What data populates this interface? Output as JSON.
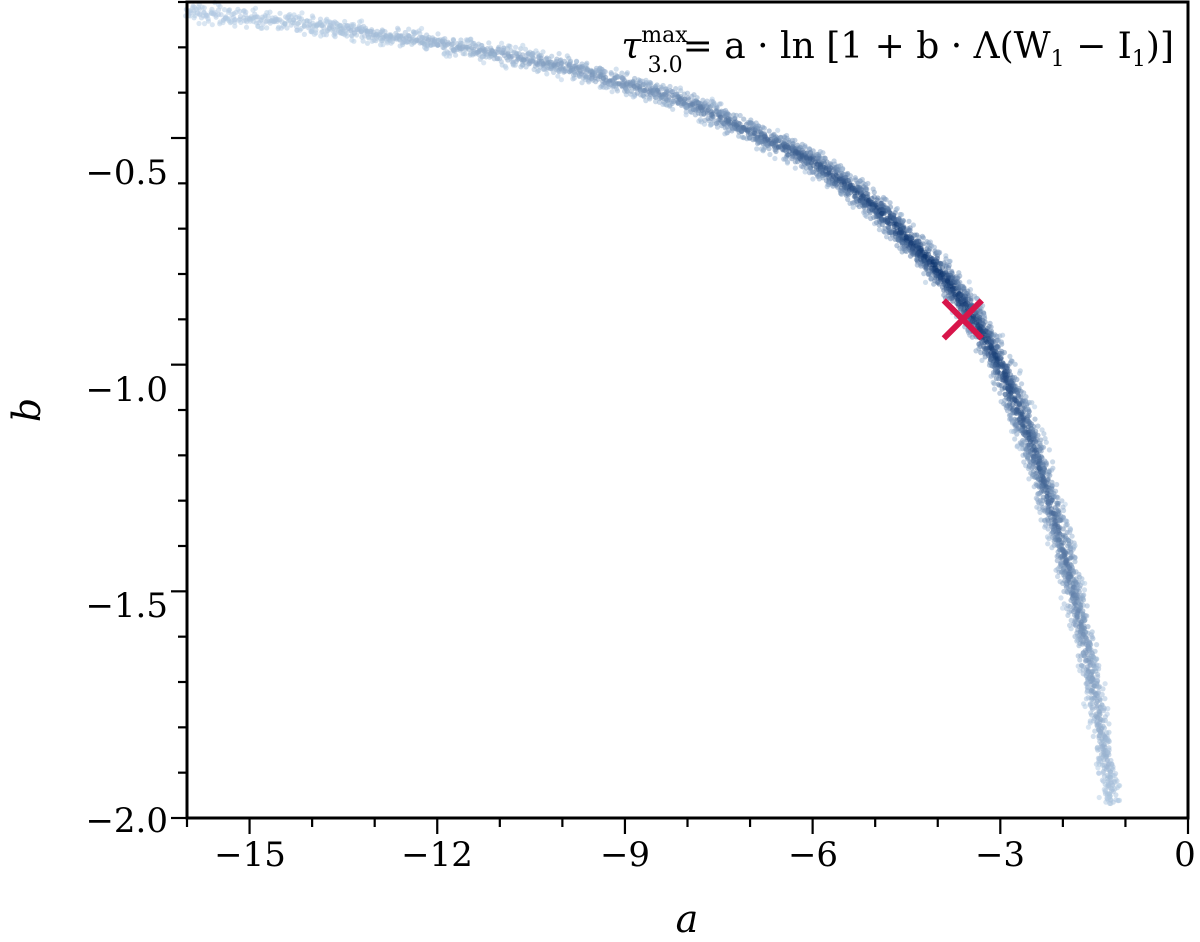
{
  "chart_data": {
    "type": "scatter",
    "title": "",
    "xlabel": "a",
    "ylabel": "b",
    "xlim": [
      -16,
      0
    ],
    "ylim": [
      -2.0,
      -0.2
    ],
    "x_ticks": [
      -15,
      -12,
      -9,
      -6,
      -3,
      0
    ],
    "x_tick_labels": [
      "−15",
      "−12",
      "−9",
      "−6",
      "−3",
      "0"
    ],
    "y_ticks": [
      -0.5,
      -1.0,
      -1.5,
      -2.0
    ],
    "y_tick_labels": [
      "−0.5",
      "−1.0",
      "−1.5",
      "−2.0"
    ],
    "grid": false,
    "legend": "none",
    "annotation": {
      "tau": "τ",
      "sup": "max",
      "sub": "3.0",
      "formula": "= a · ln [1 + b · Λ(W",
      "w_sub": "1",
      "minus": " − I",
      "i_sub": "1",
      "close": ")]"
    },
    "density_ridge": {
      "x": [
        -16.0,
        -14.0,
        -12.0,
        -10.0,
        -8.0,
        -6.0,
        -5.0,
        -4.0,
        -3.5,
        -3.0,
        -2.5,
        -2.0,
        -1.7,
        -1.5,
        -1.3,
        -1.2
      ],
      "y": [
        -0.22,
        -0.25,
        -0.29,
        -0.34,
        -0.42,
        -0.55,
        -0.65,
        -0.79,
        -0.88,
        -1.0,
        -1.17,
        -1.4,
        -1.58,
        -1.72,
        -1.88,
        -1.97
      ],
      "density": [
        0.05,
        0.1,
        0.2,
        0.35,
        0.5,
        0.75,
        0.9,
        1.0,
        0.95,
        0.9,
        0.75,
        0.6,
        0.45,
        0.3,
        0.2,
        0.1
      ],
      "color_light": "#c6dbef",
      "color_dark": "#08306b"
    },
    "best_fit": {
      "x": -3.6,
      "y": -0.9,
      "color": "#d7154a"
    }
  }
}
